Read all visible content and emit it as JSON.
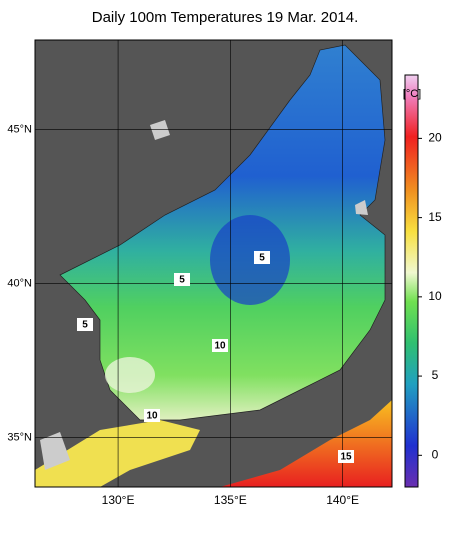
{
  "title": "Daily 100m Temperatures 19 Mar. 2014.",
  "map": {
    "lonlim": [
      126.3,
      142.2
    ],
    "latlim": [
      33.4,
      47.9
    ],
    "lonticks": [
      {
        "value": 130,
        "label": "130°E"
      },
      {
        "value": 135,
        "label": "135°E"
      },
      {
        "value": 140,
        "label": "140°E"
      }
    ],
    "latticks": [
      {
        "value": 35,
        "label": "35°N"
      },
      {
        "value": 40,
        "label": "40°N"
      },
      {
        "value": 45,
        "label": "45°N"
      }
    ],
    "contour_labels": [
      "5",
      "5",
      "5",
      "10",
      "10",
      "15"
    ]
  },
  "colorbar": {
    "label": "[°C]",
    "range": [
      -2,
      24
    ],
    "ticks": [
      0,
      5,
      10,
      15,
      20
    ]
  }
}
